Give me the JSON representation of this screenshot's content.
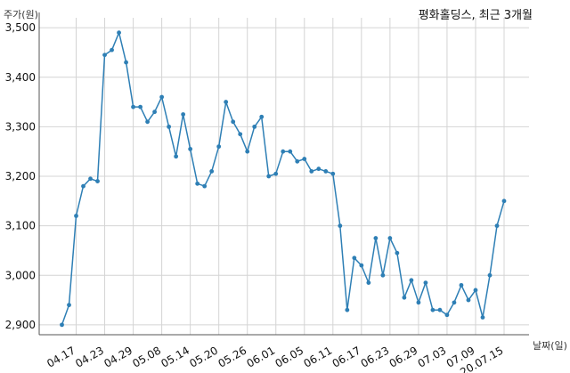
{
  "chart_data": {
    "type": "line",
    "title": "평화홀딩스, 최근 3개월",
    "ylabel": "주가(원)",
    "xlabel": "날짜(일)",
    "ylim": [
      2880,
      3520
    ],
    "yticks": [
      2900,
      3000,
      3100,
      3200,
      3300,
      3400,
      3500
    ],
    "ytick_labels": [
      "2,900",
      "3,000",
      "3,100",
      "3,200",
      "3,300",
      "3,400",
      "3,500"
    ],
    "xtick_labels": [
      "04.17",
      "04.23",
      "04.29",
      "05.08",
      "05.14",
      "05.20",
      "05.26",
      "06.01",
      "06.05",
      "06.11",
      "06.17",
      "06.23",
      "06.29",
      "07.03",
      "07.09",
      "20.07.15"
    ],
    "xtick_index": [
      2,
      6,
      10,
      14,
      18,
      22,
      26,
      30,
      34,
      38,
      42,
      46,
      50,
      54,
      58,
      62
    ],
    "grid": true,
    "series_color": "#2e7fb5",
    "series": [
      {
        "values": [
          2900,
          2940,
          3120,
          3180,
          3195,
          3190,
          3445,
          3455,
          3490,
          3430,
          3340,
          3340,
          3310,
          3330,
          3360,
          3300,
          3240,
          3325,
          3255,
          3185,
          3180,
          3210,
          3260,
          3350,
          3310,
          3285,
          3250,
          3300,
          3320,
          3200,
          3205,
          3250,
          3250,
          3230,
          3235,
          3210,
          3215,
          3210,
          3205,
          3100,
          2930,
          3035,
          3020,
          2985,
          3075,
          3000,
          3075,
          3045,
          2955,
          2990,
          2945,
          2985,
          2930,
          2930,
          2920,
          2945,
          2980,
          2950,
          2970,
          2915,
          3000,
          3100,
          3150
        ]
      }
    ]
  }
}
